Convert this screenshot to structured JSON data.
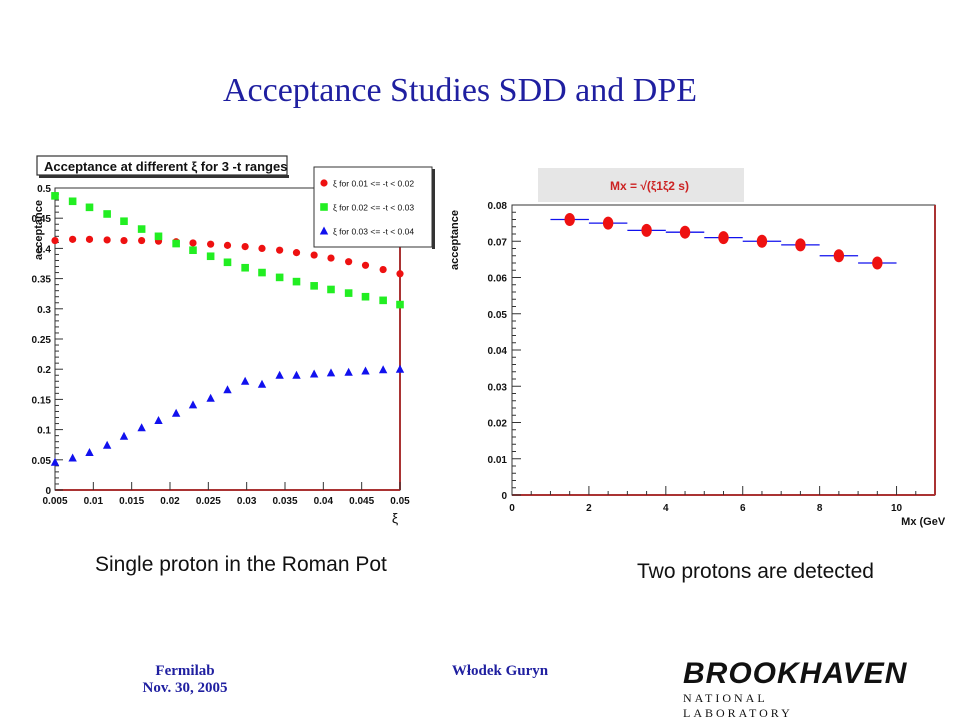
{
  "slide": {
    "title": "Acceptance Studies SDD and DPE",
    "caption_left": "Single proton in the Roman Pot",
    "caption_right": "Two protons are detected",
    "footer_left_line1": "Fermilab",
    "footer_left_line2": "Nov. 30, 2005",
    "footer_center": "Włodek Guryn",
    "logo_main": "BROOKHAVEN",
    "logo_sub": "NATIONAL LABORATORY"
  },
  "chart_data": [
    {
      "type": "scatter",
      "title": "Acceptance at different ξ for 3 -t ranges",
      "xlabel": "ξ",
      "ylabel": "acceptance",
      "xlim": [
        0.005,
        0.05
      ],
      "ylim": [
        0,
        0.5
      ],
      "x_ticks": [
        "0.005",
        "0.01",
        "0.015",
        "0.02",
        "0.025",
        "0.03",
        "0.035",
        "0.04",
        "0.045",
        "0.05"
      ],
      "y_ticks": [
        "0",
        "0.05",
        "0.1",
        "0.15",
        "0.2",
        "0.25",
        "0.3",
        "0.35",
        "0.4",
        "0.45",
        "0.5"
      ],
      "grid": false,
      "legend": "top-right",
      "series": [
        {
          "name": "ξ for 0.01 <= -t < 0.02",
          "marker": "circle",
          "color": "#ee1111",
          "points": [
            [
              0.005,
              0.413
            ],
            [
              0.0073,
              0.415
            ],
            [
              0.0095,
              0.415
            ],
            [
              0.0118,
              0.414
            ],
            [
              0.014,
              0.413
            ],
            [
              0.0163,
              0.413
            ],
            [
              0.0185,
              0.412
            ],
            [
              0.0208,
              0.411
            ],
            [
              0.023,
              0.409
            ],
            [
              0.0253,
              0.407
            ],
            [
              0.0275,
              0.405
            ],
            [
              0.0298,
              0.403
            ],
            [
              0.032,
              0.4
            ],
            [
              0.0343,
              0.397
            ],
            [
              0.0365,
              0.393
            ],
            [
              0.0388,
              0.389
            ],
            [
              0.041,
              0.384
            ],
            [
              0.0433,
              0.378
            ],
            [
              0.0455,
              0.372
            ],
            [
              0.0478,
              0.365
            ],
            [
              0.05,
              0.358
            ]
          ]
        },
        {
          "name": "ξ for 0.02 <= -t < 0.03",
          "marker": "square",
          "color": "#22ee22",
          "points": [
            [
              0.005,
              0.487
            ],
            [
              0.0073,
              0.478
            ],
            [
              0.0095,
              0.468
            ],
            [
              0.0118,
              0.457
            ],
            [
              0.014,
              0.445
            ],
            [
              0.0163,
              0.432
            ],
            [
              0.0185,
              0.42
            ],
            [
              0.0208,
              0.408
            ],
            [
              0.023,
              0.397
            ],
            [
              0.0253,
              0.387
            ],
            [
              0.0275,
              0.377
            ],
            [
              0.0298,
              0.368
            ],
            [
              0.032,
              0.36
            ],
            [
              0.0343,
              0.352
            ],
            [
              0.0365,
              0.345
            ],
            [
              0.0388,
              0.338
            ],
            [
              0.041,
              0.332
            ],
            [
              0.0433,
              0.326
            ],
            [
              0.0455,
              0.32
            ],
            [
              0.0478,
              0.314
            ],
            [
              0.05,
              0.307
            ]
          ]
        },
        {
          "name": "ξ for 0.03 <= -t < 0.04",
          "marker": "triangle",
          "color": "#1111ee",
          "points": [
            [
              0.005,
              0.046
            ],
            [
              0.0073,
              0.053
            ],
            [
              0.0095,
              0.062
            ],
            [
              0.0118,
              0.074
            ],
            [
              0.014,
              0.089
            ],
            [
              0.0163,
              0.103
            ],
            [
              0.0185,
              0.115
            ],
            [
              0.0208,
              0.127
            ],
            [
              0.023,
              0.141
            ],
            [
              0.0253,
              0.152
            ],
            [
              0.0275,
              0.166
            ],
            [
              0.0298,
              0.18
            ],
            [
              0.032,
              0.175
            ],
            [
              0.0343,
              0.19
            ],
            [
              0.0365,
              0.19
            ],
            [
              0.0388,
              0.192
            ],
            [
              0.041,
              0.194
            ],
            [
              0.0433,
              0.195
            ],
            [
              0.0455,
              0.197
            ],
            [
              0.0478,
              0.199
            ],
            [
              0.05,
              0.2
            ]
          ]
        }
      ]
    },
    {
      "type": "scatter",
      "title": "Mx = √(ξ1ξ2 s)",
      "xlabel": "Mx (GeV)",
      "ylabel": "acceptance",
      "xlim": [
        0,
        11
      ],
      "ylim": [
        0,
        0.08
      ],
      "x_ticks": [
        "0",
        "2",
        "4",
        "6",
        "8",
        "10"
      ],
      "y_ticks": [
        "0",
        "0.01",
        "0.02",
        "0.03",
        "0.04",
        "0.05",
        "0.06",
        "0.07",
        "0.08"
      ],
      "grid": false,
      "series": [
        {
          "marker": "circle-with-xerror",
          "color": "#ee1111",
          "error_color": "#1111ee",
          "x": [
            1.5,
            2.5,
            3.5,
            4.5,
            5.5,
            6.5,
            7.5,
            8.5,
            9.5
          ],
          "values": [
            0.076,
            0.075,
            0.073,
            0.0725,
            0.071,
            0.07,
            0.069,
            0.066,
            0.064
          ]
        }
      ]
    }
  ]
}
